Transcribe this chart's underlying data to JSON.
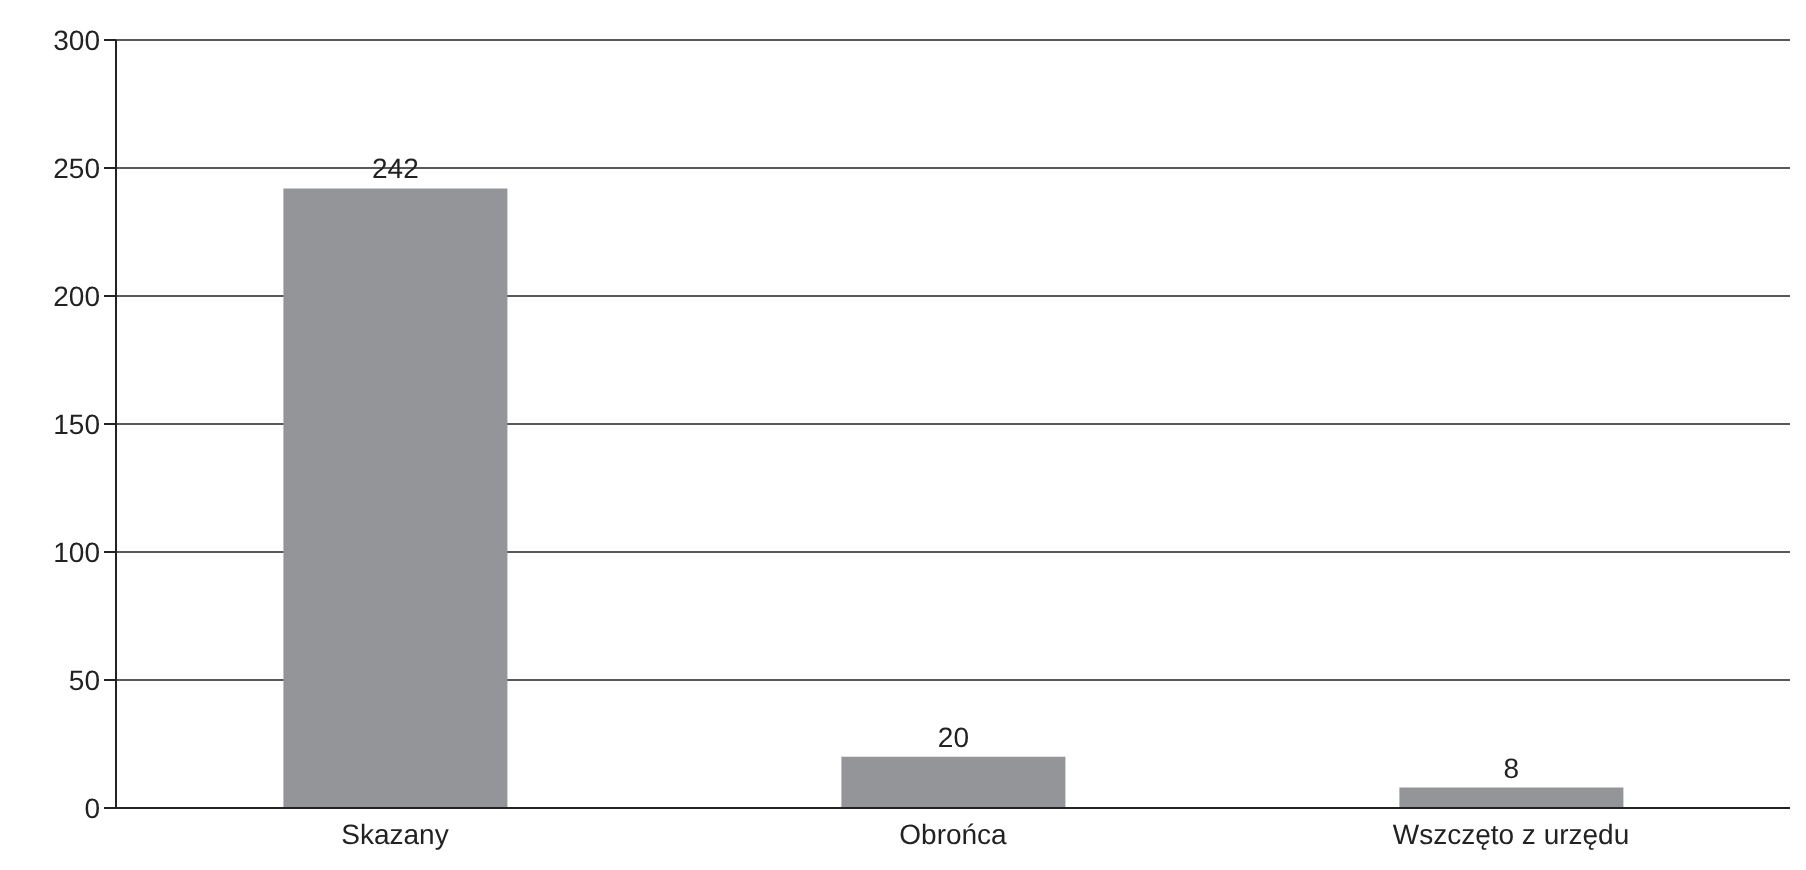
{
  "chart_data": {
    "type": "bar",
    "categories": [
      "Skazany",
      "Obrońca",
      "Wszczęto z urzędu"
    ],
    "values": [
      242,
      20,
      8
    ],
    "color": "#939598",
    "ylim": [
      0,
      300
    ],
    "yticks": [
      0,
      50,
      100,
      150,
      200,
      250,
      300
    ],
    "grid": "y",
    "data_labels": true
  }
}
